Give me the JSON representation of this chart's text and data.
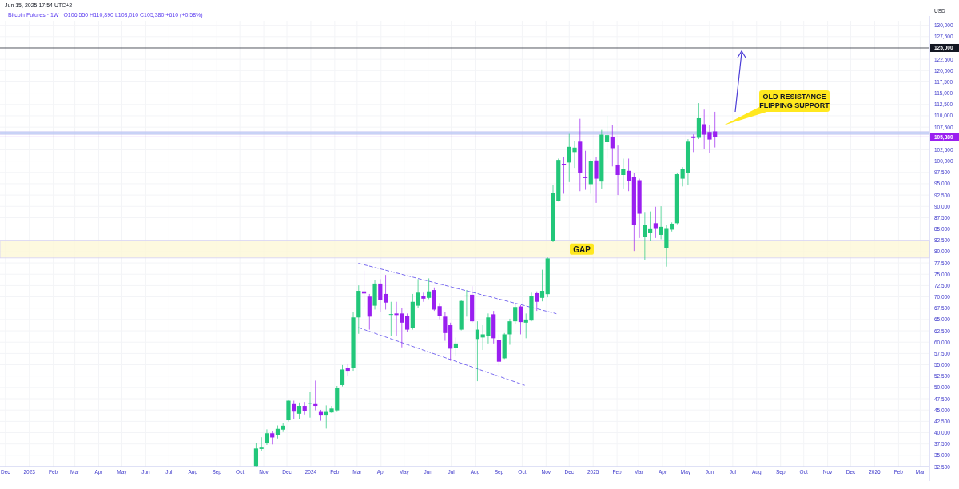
{
  "chart_data": {
    "type": "candlestick",
    "title": "Bitcoin Futures · 1W",
    "subtitle": "Jun 15, 2025 17:54 UTC+2",
    "ylabel": "USD",
    "annotations": [
      "O106,550 H110,890 L103,010 C105,380 +610 (+0.58%)",
      "OLD RESISTANCE FLIPPING SUPPORT"
    ],
    "colors": [
      "#22c77a",
      "#22c77a",
      "#22c77a",
      "#9a1ff0",
      "#22c77a",
      "#22c77a",
      "#22c77a",
      "#9a1ff0",
      "#22c77a",
      "#9a1ff0",
      "#22c77a",
      "#9a1ff0",
      "#9a1ff0",
      "#22c77a",
      "#22c77a",
      "#22c77a",
      "#22c77a",
      "#9a1ff0",
      "#22c77a",
      "#22c77a",
      "#9a1ff0",
      "#9a1ff0",
      "#22c77a",
      "#9a1ff0",
      "#9a1ff0",
      "#22c77a",
      "#9a1ff0",
      "#9a1ff0",
      "#9a1ff0",
      "#22c77a",
      "#22c77a",
      "#9a1ff0",
      "#22c77a",
      "#9a1ff0",
      "#9a1ff0",
      "#9a1ff0",
      "#9a1ff0",
      "#22c77a",
      "#22c77a",
      "#22c77a",
      "#9a1ff0",
      "#22c77a",
      "#22c77a",
      "#22c77a",
      "#9a1ff0",
      "#9a1ff0",
      "#22c77a",
      "#22c77a",
      "#22c77a",
      "#9a1ff0",
      "#22c77a",
      "#22c77a",
      "#9a1ff0",
      "#22c77a",
      "#22c77a",
      "#22c77a",
      "#22c77a",
      "#9a1ff0",
      "#22c77a",
      "#22c77a",
      "#9a1ff0",
      "#9a1ff0",
      "#22c77a",
      "#9a1ff0",
      "#22c77a",
      "#22c77a",
      "#9a1ff0",
      "#9a1ff0",
      "#22c77a",
      "#9a1ff0",
      "#9a1ff0",
      "#9a1ff0",
      "#22c77a",
      "#22c77a",
      "#9a1ff0",
      "#22c77a",
      "#22c77a",
      "#22c77a",
      "#22c77a",
      "#22c77a",
      "#22c77a",
      "#9a1ff0",
      "#22c77a",
      "#9a1ff0",
      "#9a1ff0",
      "#9a1ff0"
    ],
    "x": [
      "2023-10-22",
      "2023-10-29",
      "2023-11-05",
      "2023-11-12",
      "2023-11-19",
      "2023-11-26",
      "2023-12-03",
      "2023-12-10",
      "2023-12-17",
      "2023-12-24",
      "2023-12-31",
      "2024-01-07",
      "2024-01-14",
      "2024-01-21",
      "2024-01-28",
      "2024-02-04",
      "2024-02-11",
      "2024-02-18",
      "2024-02-25",
      "2024-03-03",
      "2024-03-10",
      "2024-03-17",
      "2024-03-24",
      "2024-03-31",
      "2024-04-07",
      "2024-04-14",
      "2024-04-21",
      "2024-04-28",
      "2024-05-05",
      "2024-05-12",
      "2024-05-19",
      "2024-05-26",
      "2024-06-02",
      "2024-06-09",
      "2024-06-16",
      "2024-06-23",
      "2024-06-30",
      "2024-07-07",
      "2024-07-14",
      "2024-07-21",
      "2024-07-28",
      "2024-08-04",
      "2024-08-11",
      "2024-08-18",
      "2024-08-25",
      "2024-09-01",
      "2024-09-08",
      "2024-09-15",
      "2024-09-22",
      "2024-09-29",
      "2024-10-06",
      "2024-10-13",
      "2024-10-20",
      "2024-10-27",
      "2024-11-03",
      "2024-11-10",
      "2024-11-17",
      "2024-11-24",
      "2024-12-01",
      "2024-12-08",
      "2024-12-15",
      "2024-12-22",
      "2024-12-29",
      "2025-01-05",
      "2025-01-12",
      "2025-01-19",
      "2025-01-26",
      "2025-02-02",
      "2025-02-09",
      "2025-02-16",
      "2025-02-23",
      "2025-03-02",
      "2025-03-09",
      "2025-03-16",
      "2025-03-23",
      "2025-03-30",
      "2025-04-06",
      "2025-04-13",
      "2025-04-20",
      "2025-04-27",
      "2025-05-04",
      "2025-05-11",
      "2025-05-18",
      "2025-05-25",
      "2025-06-01",
      "2025-06-08"
    ],
    "ohlc": [
      [
        32600,
        37700,
        32500,
        36500
      ],
      [
        36400,
        39000,
        36000,
        36700
      ],
      [
        37680,
        40730,
        37280,
        39870
      ],
      [
        39870,
        40440,
        37390,
        38950
      ],
      [
        39410,
        41590,
        38720,
        40840
      ],
      [
        40670,
        42050,
        40150,
        41530
      ],
      [
        42740,
        47340,
        42450,
        47060
      ],
      [
        46480,
        47060,
        42910,
        44640
      ],
      [
        44180,
        46650,
        43030,
        45910
      ],
      [
        45910,
        46770,
        44010,
        44760
      ],
      [
        46300,
        49070,
        43320,
        46500
      ],
      [
        46480,
        51490,
        44930,
        45910
      ],
      [
        44580,
        45040,
        42630,
        43780
      ],
      [
        43780,
        46020,
        40900,
        44580
      ],
      [
        44470,
        45910,
        44350,
        45330
      ],
      [
        44930,
        50330,
        44580,
        49820
      ],
      [
        50510,
        54940,
        50220,
        53960
      ],
      [
        54360,
        55110,
        52640,
        53670
      ],
      [
        54250,
        66610,
        53670,
        65460
      ],
      [
        65460,
        72540,
        61840,
        71330
      ],
      [
        71210,
        75820,
        67760,
        70750
      ],
      [
        70060,
        70640,
        62760,
        65630
      ],
      [
        68050,
        73800,
        67190,
        72940
      ],
      [
        72940,
        73920,
        66610,
        69320
      ],
      [
        70640,
        74840,
        67190,
        68740
      ],
      [
        66020,
        68910,
        61440,
        66190
      ],
      [
        66330,
        68910,
        61440,
        65980
      ],
      [
        66330,
        67480,
        58850,
        64310
      ],
      [
        65860,
        66330,
        62300,
        62760
      ],
      [
        63160,
        70640,
        62760,
        68910
      ],
      [
        68050,
        73920,
        67480,
        70930
      ],
      [
        70240,
        70930,
        68910,
        69600
      ],
      [
        69780,
        74090,
        69490,
        71210
      ],
      [
        71500,
        72080,
        66900,
        67190
      ],
      [
        67940,
        68630,
        65060,
        65860
      ],
      [
        65630,
        66610,
        60290,
        62010
      ],
      [
        63740,
        64310,
        55860,
        58560
      ],
      [
        58730,
        61030,
        56830,
        59710
      ],
      [
        62760,
        69200,
        62590,
        69090
      ],
      [
        70180,
        71500,
        65630,
        70290
      ],
      [
        70470,
        72360,
        64310,
        64600
      ],
      [
        60690,
        64600,
        51370,
        62760
      ],
      [
        61030,
        63740,
        58270,
        61720
      ],
      [
        61440,
        66330,
        59710,
        65460
      ],
      [
        66150,
        66900,
        59710,
        60860
      ],
      [
        60460,
        61720,
        54820,
        55680
      ],
      [
        56430,
        62010,
        56260,
        61720
      ],
      [
        61720,
        65170,
        59420,
        64600
      ],
      [
        64600,
        68510,
        64020,
        67760
      ],
      [
        67880,
        68170,
        61720,
        64430
      ],
      [
        64310,
        66330,
        60860,
        65000
      ],
      [
        64770,
        70930,
        64600,
        70240
      ],
      [
        70810,
        71210,
        66900,
        68910
      ],
      [
        69780,
        75990,
        69000,
        71330
      ],
      [
        70600,
        78700,
        69900,
        78500
      ],
      [
        82430,
        94800,
        82100,
        92900
      ],
      [
        91170,
        100550,
        91060,
        100260
      ],
      [
        99400,
        100950,
        92790,
        99110
      ],
      [
        99690,
        106010,
        95370,
        103140
      ],
      [
        101990,
        104500,
        98500,
        102970
      ],
      [
        104290,
        109350,
        93360,
        97390
      ],
      [
        96520,
        102280,
        93650,
        96240
      ],
      [
        94910,
        100380,
        92790,
        99980
      ],
      [
        100150,
        100950,
        90770,
        96120
      ],
      [
        95490,
        106880,
        93940,
        105840
      ],
      [
        104170,
        110000,
        100550,
        105730
      ],
      [
        105320,
        108030,
        98820,
        102850
      ],
      [
        99230,
        103430,
        92500,
        96930
      ],
      [
        96930,
        100550,
        93940,
        98250
      ],
      [
        97850,
        100550,
        93360,
        95660
      ],
      [
        96520,
        97390,
        80130,
        85880
      ],
      [
        95780,
        96120,
        83010,
        88360
      ],
      [
        83290,
        88760,
        78120,
        85880
      ],
      [
        84160,
        88870,
        82430,
        85130
      ],
      [
        86280,
        89910,
        83010,
        85190
      ],
      [
        83700,
        90020,
        82720,
        85480
      ],
      [
        80820,
        85880,
        76680,
        85190
      ],
      [
        84850,
        86460,
        84440,
        86170
      ],
      [
        86280,
        97390,
        86050,
        97100
      ],
      [
        96120,
        98650,
        94400,
        98250
      ],
      [
        97390,
        104860,
        94630,
        104290
      ],
      [
        105440,
        105900,
        101990,
        105090
      ],
      [
        105150,
        112800,
        104860,
        109470
      ],
      [
        108140,
        111360,
        102680,
        105840
      ],
      [
        106420,
        108030,
        101700,
        104770
      ],
      [
        106550,
        110890,
        103010,
        105380
      ]
    ],
    "series": [
      {
        "type": "line",
        "x": [
          "2024-03-03",
          "2024-11-14"
        ],
        "values": [
          77400,
          66300
        ],
        "color": "#7a6cf0",
        "line_style": "dashed"
      },
      {
        "type": "line",
        "x": [
          "2024-03-03",
          "2024-10-04"
        ],
        "values": [
          63200,
          50500
        ],
        "color": "#7a6cf0",
        "line_style": "dashed"
      }
    ],
    "xlim": [
      "2022-11-24",
      "2026-03-13"
    ],
    "xticks": [
      {
        "value": "2022-12-01",
        "label": "Dec"
      },
      {
        "value": "2023-01-01",
        "label": "2023"
      },
      {
        "value": "2023-02-01",
        "label": "Feb"
      },
      {
        "value": "2023-03-01",
        "label": "Mar"
      },
      {
        "value": "2023-04-01",
        "label": "Apr"
      },
      {
        "value": "2023-05-01",
        "label": "May"
      },
      {
        "value": "2023-06-01",
        "label": "Jun"
      },
      {
        "value": "2023-07-01",
        "label": "Jul"
      },
      {
        "value": "2023-08-01",
        "label": "Aug"
      },
      {
        "value": "2023-09-01",
        "label": "Sep"
      },
      {
        "value": "2023-10-01",
        "label": "Oct"
      },
      {
        "value": "2023-11-01",
        "label": "Nov"
      },
      {
        "value": "2023-12-01",
        "label": "Dec"
      },
      {
        "value": "2024-01-01",
        "label": "2024"
      },
      {
        "value": "2024-02-01",
        "label": "Feb"
      },
      {
        "value": "2024-03-01",
        "label": "Mar"
      },
      {
        "value": "2024-04-01",
        "label": "Apr"
      },
      {
        "value": "2024-05-01",
        "label": "May"
      },
      {
        "value": "2024-06-01",
        "label": "Jun"
      },
      {
        "value": "2024-07-01",
        "label": "Jul"
      },
      {
        "value": "2024-08-01",
        "label": "Aug"
      },
      {
        "value": "2024-09-01",
        "label": "Sep"
      },
      {
        "value": "2024-10-01",
        "label": "Oct"
      },
      {
        "value": "2024-11-01",
        "label": "Nov"
      },
      {
        "value": "2024-12-01",
        "label": "Dec"
      },
      {
        "value": "2025-01-01",
        "label": "2025"
      },
      {
        "value": "2025-02-01",
        "label": "Feb"
      },
      {
        "value": "2025-03-01",
        "label": "Mar"
      },
      {
        "value": "2025-04-01",
        "label": "Apr"
      },
      {
        "value": "2025-05-01",
        "label": "May"
      },
      {
        "value": "2025-06-01",
        "label": "Jun"
      },
      {
        "value": "2025-07-01",
        "label": "Jul"
      },
      {
        "value": "2025-08-01",
        "label": "Aug"
      },
      {
        "value": "2025-09-01",
        "label": "Sep"
      },
      {
        "value": "2025-10-01",
        "label": "Oct"
      },
      {
        "value": "2025-11-01",
        "label": "Nov"
      },
      {
        "value": "2025-12-01",
        "label": "Dec"
      },
      {
        "value": "2026-01-01",
        "label": "2026"
      },
      {
        "value": "2026-02-01",
        "label": "Feb"
      },
      {
        "value": "2026-03-01",
        "label": "Mar"
      }
    ],
    "ylim": [
      32500,
      131000
    ],
    "yticks": [
      {
        "value": 32500,
        "label": "32,500"
      },
      {
        "value": 35000,
        "label": "35,000"
      },
      {
        "value": 37500,
        "label": "37,500"
      },
      {
        "value": 40000,
        "label": "40,000"
      },
      {
        "value": 42500,
        "label": "42,500"
      },
      {
        "value": 45000,
        "label": "45,000"
      },
      {
        "value": 47500,
        "label": "47,500"
      },
      {
        "value": 50000,
        "label": "50,000"
      },
      {
        "value": 52500,
        "label": "52,500"
      },
      {
        "value": 55000,
        "label": "55,000"
      },
      {
        "value": 57500,
        "label": "57,500"
      },
      {
        "value": 60000,
        "label": "60,000"
      },
      {
        "value": 62500,
        "label": "62,500"
      },
      {
        "value": 65000,
        "label": "65,000"
      },
      {
        "value": 67500,
        "label": "67,500"
      },
      {
        "value": 70000,
        "label": "70,000"
      },
      {
        "value": 72500,
        "label": "72,500"
      },
      {
        "value": 75000,
        "label": "75,000"
      },
      {
        "value": 77500,
        "label": "77,500"
      },
      {
        "value": 80000,
        "label": "80,000"
      },
      {
        "value": 82500,
        "label": "82,500"
      },
      {
        "value": 85000,
        "label": "85,000"
      },
      {
        "value": 87500,
        "label": "87,500"
      },
      {
        "value": 90000,
        "label": "90,000"
      },
      {
        "value": 92500,
        "label": "92,500"
      },
      {
        "value": 95000,
        "label": "95,000"
      },
      {
        "value": 97500,
        "label": "97,500"
      },
      {
        "value": 100000,
        "label": "100,000"
      },
      {
        "value": 102500,
        "label": "102,500"
      },
      {
        "value": 107500,
        "label": "107,500"
      },
      {
        "value": 110000,
        "label": "110,000"
      },
      {
        "value": 112500,
        "label": "112,500"
      },
      {
        "value": 115000,
        "label": "115,000"
      },
      {
        "value": 117500,
        "label": "117,500"
      },
      {
        "value": 120000,
        "label": "120,000"
      },
      {
        "value": 122500,
        "label": "122,500"
      },
      {
        "value": 127500,
        "label": "127,500"
      },
      {
        "value": 130000,
        "label": "130,000"
      }
    ],
    "grid": true,
    "ref_lines": [
      {
        "axis": "y",
        "value": 125000,
        "label": "125,000",
        "color": "#131722"
      },
      {
        "axis": "y",
        "value": 105380,
        "label": "105,380",
        "color": "#9a1ff0"
      }
    ],
    "bands": [
      {
        "axis": "y",
        "from": 105900,
        "to": 106500,
        "color": "#b8c8f5"
      },
      {
        "axis": "y",
        "from": 78600,
        "to": 82500,
        "label": "GAP",
        "color": "#fdf8d8"
      }
    ]
  }
}
